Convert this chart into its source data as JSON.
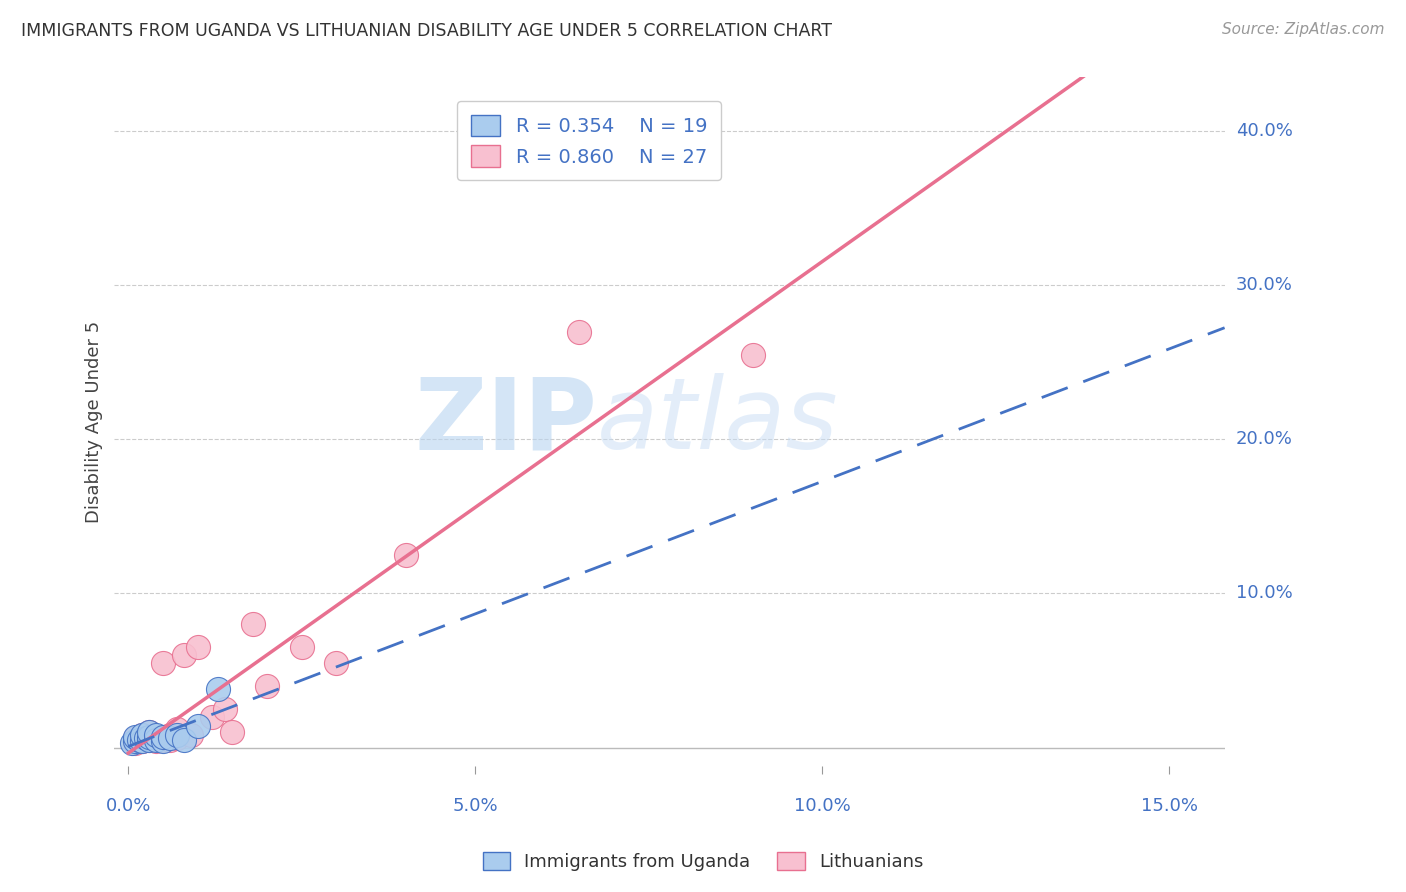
{
  "title": "IMMIGRANTS FROM UGANDA VS LITHUANIAN DISABILITY AGE UNDER 5 CORRELATION CHART",
  "source": "Source: ZipAtlas.com",
  "xlabel_ticks": [
    "0.0%",
    "5.0%",
    "10.0%",
    "15.0%"
  ],
  "xlabel_tick_vals": [
    0.0,
    0.05,
    0.1,
    0.15
  ],
  "ylabel_ticks": [
    "10.0%",
    "20.0%",
    "30.0%",
    "40.0%"
  ],
  "ylabel_tick_vals": [
    0.1,
    0.2,
    0.3,
    0.4
  ],
  "xlim": [
    -0.002,
    0.158
  ],
  "ylim": [
    -0.012,
    0.435
  ],
  "ylabel": "Disability Age Under 5",
  "blue_R": 0.354,
  "blue_N": 19,
  "pink_R": 0.86,
  "pink_N": 27,
  "blue_scatter_x": [
    0.0005,
    0.001,
    0.001,
    0.0015,
    0.002,
    0.002,
    0.0025,
    0.003,
    0.003,
    0.003,
    0.004,
    0.004,
    0.005,
    0.005,
    0.006,
    0.007,
    0.008,
    0.01,
    0.013
  ],
  "blue_scatter_y": [
    0.003,
    0.004,
    0.007,
    0.005,
    0.004,
    0.008,
    0.006,
    0.005,
    0.007,
    0.01,
    0.005,
    0.008,
    0.004,
    0.007,
    0.006,
    0.008,
    0.005,
    0.014,
    0.038
  ],
  "pink_scatter_x": [
    0.001,
    0.001,
    0.002,
    0.002,
    0.003,
    0.003,
    0.004,
    0.004,
    0.005,
    0.005,
    0.006,
    0.006,
    0.007,
    0.007,
    0.008,
    0.009,
    0.01,
    0.012,
    0.014,
    0.015,
    0.018,
    0.02,
    0.025,
    0.03,
    0.04,
    0.065,
    0.09
  ],
  "pink_scatter_y": [
    0.003,
    0.006,
    0.004,
    0.008,
    0.005,
    0.01,
    0.004,
    0.007,
    0.005,
    0.055,
    0.005,
    0.008,
    0.006,
    0.012,
    0.06,
    0.008,
    0.065,
    0.02,
    0.025,
    0.01,
    0.08,
    0.04,
    0.065,
    0.055,
    0.125,
    0.27,
    0.255
  ],
  "blue_color": "#aaccee",
  "blue_line_color": "#4472c4",
  "pink_color": "#f8c0d0",
  "pink_line_color": "#e87090",
  "watermark_zip": "ZIP",
  "watermark_atlas": "atlas",
  "legend_label_blue": "Immigrants from Uganda",
  "legend_label_pink": "Lithuanians",
  "background_color": "#ffffff",
  "grid_color": "#cccccc"
}
